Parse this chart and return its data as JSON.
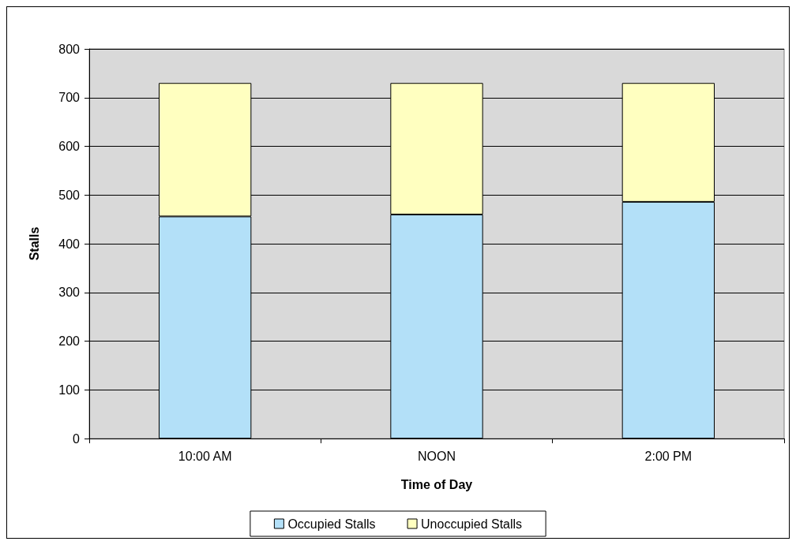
{
  "chart_data": {
    "type": "bar",
    "stacked": true,
    "xlabel": "Time of Day",
    "ylabel": "Stalls",
    "categories": [
      "10:00 AM",
      "NOON",
      "2:00 PM"
    ],
    "series": [
      {
        "name": "Occupied Stalls",
        "color": "#b3e0f8",
        "values": [
          456,
          460,
          486
        ]
      },
      {
        "name": "Unoccupied Stalls",
        "color": "#ffffc0",
        "values": [
          274,
          270,
          244
        ]
      }
    ],
    "ylim": [
      0,
      800
    ],
    "yticks": [
      0,
      100,
      200,
      300,
      400,
      500,
      600,
      700,
      800
    ],
    "grid": "y",
    "legend": "bottom"
  }
}
